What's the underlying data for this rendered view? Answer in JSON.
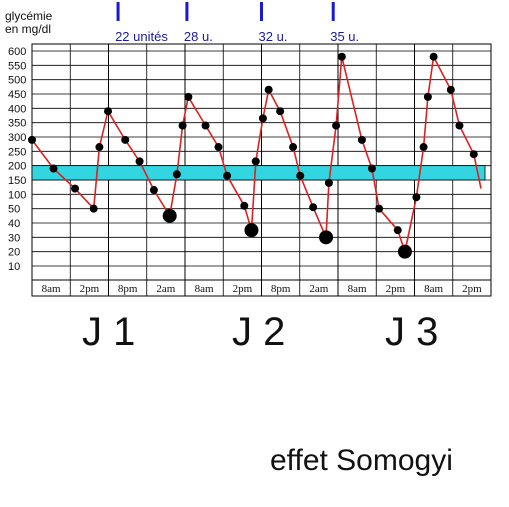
{
  "chart_data": {
    "type": "line",
    "ylabel": "glycémie\nen mg/dl",
    "ylabel_line1": "glycémie",
    "ylabel_line2": "en mg/dl",
    "y_ticks": [
      10,
      20,
      30,
      40,
      50,
      100,
      150,
      200,
      250,
      300,
      350,
      400,
      450,
      500,
      550,
      600
    ],
    "y_tick_labels": [
      "10",
      "20",
      "30",
      "40",
      "50",
      "100",
      "150",
      "200",
      "250",
      "300",
      "350",
      "400",
      "450",
      "500",
      "550",
      "600"
    ],
    "x_tick_labels": [
      "8am",
      "2pm",
      "8pm",
      "2am",
      "8am",
      "2pm",
      "8pm",
      "2am",
      "8am",
      "2pm",
      "8am",
      "2pm"
    ],
    "target_band": {
      "from": 150,
      "to": 200,
      "color": "#33d6e0"
    },
    "series_color": "#e02020",
    "dose_marker_color": "#1a1ad0",
    "doses": [
      {
        "label": "22 unités",
        "time": 6.0
      },
      {
        "label": "28 u.",
        "time": 10.8
      },
      {
        "label": "32 u.",
        "time": 16.0
      },
      {
        "label": "35 u.",
        "time": 21.0
      }
    ],
    "day_labels": [
      "J 1",
      "J 2",
      "J 3"
    ],
    "caption": "effet Somogyi",
    "points": [
      {
        "t": 0.0,
        "v": 290,
        "big": false
      },
      {
        "t": 1.5,
        "v": 190,
        "big": false
      },
      {
        "t": 3.0,
        "v": 120,
        "big": false
      },
      {
        "t": 4.3,
        "v": 50,
        "big": false
      },
      {
        "t": 4.7,
        "v": 265,
        "big": false
      },
      {
        "t": 5.3,
        "v": 390,
        "big": false
      },
      {
        "t": 6.5,
        "v": 290,
        "big": false
      },
      {
        "t": 7.5,
        "v": 215,
        "big": false
      },
      {
        "t": 8.5,
        "v": 115,
        "big": false
      },
      {
        "t": 9.6,
        "v": 45,
        "big": true
      },
      {
        "t": 10.1,
        "v": 170,
        "big": false
      },
      {
        "t": 10.5,
        "v": 340,
        "big": false
      },
      {
        "t": 10.9,
        "v": 440,
        "big": false
      },
      {
        "t": 12.1,
        "v": 340,
        "big": false
      },
      {
        "t": 13.0,
        "v": 265,
        "big": false
      },
      {
        "t": 13.6,
        "v": 165,
        "big": false
      },
      {
        "t": 14.8,
        "v": 60,
        "big": false
      },
      {
        "t": 15.3,
        "v": 35,
        "big": true
      },
      {
        "t": 15.6,
        "v": 215,
        "big": false
      },
      {
        "t": 16.1,
        "v": 365,
        "big": false
      },
      {
        "t": 16.5,
        "v": 465,
        "big": false
      },
      {
        "t": 17.3,
        "v": 390,
        "big": false
      },
      {
        "t": 18.2,
        "v": 265,
        "big": false
      },
      {
        "t": 18.7,
        "v": 165,
        "big": false
      },
      {
        "t": 19.6,
        "v": 55,
        "big": false
      },
      {
        "t": 20.5,
        "v": 30,
        "big": true
      },
      {
        "t": 20.7,
        "v": 140,
        "big": false
      },
      {
        "t": 21.2,
        "v": 340,
        "big": false
      },
      {
        "t": 21.6,
        "v": 580,
        "big": false
      },
      {
        "t": 23.0,
        "v": 290,
        "big": false
      },
      {
        "t": 23.7,
        "v": 190,
        "big": false
      },
      {
        "t": 24.2,
        "v": 50,
        "big": false
      },
      {
        "t": 25.5,
        "v": 35,
        "big": false
      },
      {
        "t": 26.0,
        "v": 20,
        "big": true
      },
      {
        "t": 26.8,
        "v": 90,
        "big": false
      },
      {
        "t": 27.3,
        "v": 265,
        "big": false
      },
      {
        "t": 27.6,
        "v": 440,
        "big": false
      },
      {
        "t": 28.0,
        "v": 580,
        "big": false
      },
      {
        "t": 29.2,
        "v": 465,
        "big": false
      },
      {
        "t": 29.8,
        "v": 340,
        "big": false
      },
      {
        "t": 30.8,
        "v": 240,
        "big": false
      }
    ],
    "tail": {
      "t": 31.3,
      "v": 120
    }
  }
}
